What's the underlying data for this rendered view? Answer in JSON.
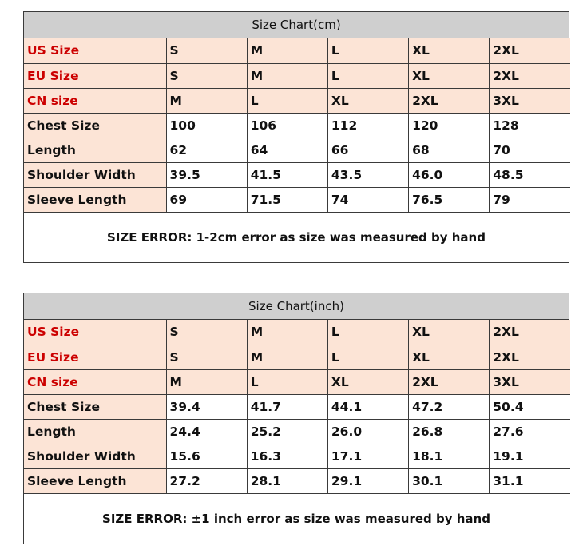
{
  "charts": [
    {
      "title": "Size Chart(cm)",
      "size_rows": [
        {
          "label": "US Size",
          "values": [
            "S",
            "M",
            "L",
            "XL",
            "2XL"
          ]
        },
        {
          "label": "EU Size",
          "values": [
            "S",
            "M",
            "L",
            "XL",
            "2XL"
          ]
        },
        {
          "label": "CN size",
          "values": [
            "M",
            "L",
            "XL",
            "2XL",
            "3XL"
          ]
        }
      ],
      "measure_rows": [
        {
          "label": "Chest Size",
          "values": [
            "100",
            "106",
            "112",
            "120",
            "128"
          ]
        },
        {
          "label": "Length",
          "values": [
            "62",
            "64",
            "66",
            "68",
            "70"
          ]
        },
        {
          "label": "Shoulder Width",
          "values": [
            "39.5",
            "41.5",
            "43.5",
            "46.0",
            "48.5"
          ]
        },
        {
          "label": "Sleeve Length",
          "values": [
            "69",
            "71.5",
            "74",
            "76.5",
            "79"
          ]
        }
      ],
      "note": "SIZE ERROR: 1-2cm error as size was measured by hand"
    },
    {
      "title": "Size Chart(inch)",
      "size_rows": [
        {
          "label": "US Size",
          "values": [
            "S",
            "M",
            "L",
            "XL",
            "2XL"
          ]
        },
        {
          "label": "EU Size",
          "values": [
            "S",
            "M",
            "L",
            "XL",
            "2XL"
          ]
        },
        {
          "label": "CN size",
          "values": [
            "M",
            "L",
            "XL",
            "2XL",
            "3XL"
          ]
        }
      ],
      "measure_rows": [
        {
          "label": "Chest Size",
          "values": [
            "39.4",
            "41.7",
            "44.1",
            "47.2",
            "50.4"
          ]
        },
        {
          "label": "Length",
          "values": [
            "24.4",
            "25.2",
            "26.0",
            "26.8",
            "27.6"
          ]
        },
        {
          "label": "Shoulder Width",
          "values": [
            "15.6",
            "16.3",
            "17.1",
            "18.1",
            "19.1"
          ]
        },
        {
          "label": "Sleeve Length",
          "values": [
            "27.2",
            "28.1",
            "29.1",
            "30.1",
            "31.1"
          ]
        }
      ],
      "note": "SIZE ERROR: ±1 inch error as size was measured by hand"
    }
  ],
  "colors": {
    "header_bg": "#cfcfcf",
    "shaded_bg": "#fce4d6",
    "size_label_text": "#cc0000",
    "border": "#3a3a3a"
  }
}
